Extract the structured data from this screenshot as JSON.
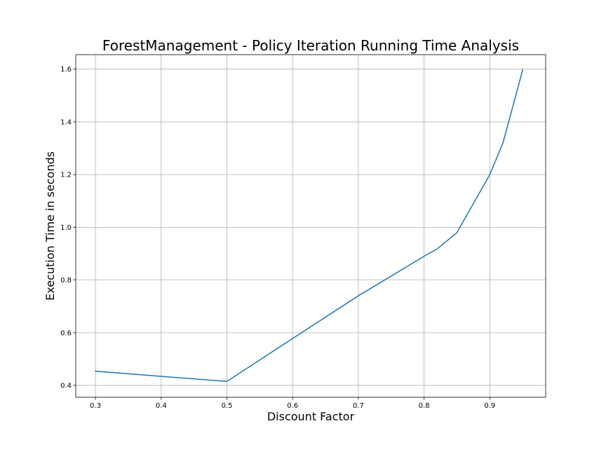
{
  "chart_data": {
    "type": "line",
    "title": "ForestManagement - Policy Iteration Running Time Analysis",
    "xlabel": "Discount Factor",
    "ylabel": "Execution Time in seconds",
    "xlim": [
      0.27,
      0.985
    ],
    "ylim": [
      0.355,
      1.655
    ],
    "x_ticks": [
      0.3,
      0.4,
      0.5,
      0.6,
      0.7,
      0.8,
      0.9
    ],
    "x_tick_labels": [
      "0.3",
      "0.4",
      "0.5",
      "0.6",
      "0.7",
      "0.8",
      "0.9"
    ],
    "y_ticks": [
      0.4,
      0.6,
      0.8,
      1.0,
      1.2,
      1.4,
      1.6
    ],
    "y_tick_labels": [
      "0.4",
      "0.6",
      "0.8",
      "1.0",
      "1.2",
      "1.4",
      "1.6"
    ],
    "grid": true,
    "series": [
      {
        "color": "#1f77b4",
        "x": [
          0.3,
          0.5,
          0.6,
          0.7,
          0.8,
          0.82,
          0.85,
          0.9,
          0.92,
          0.95
        ],
        "y": [
          0.454,
          0.415,
          0.578,
          0.74,
          0.89,
          0.918,
          0.98,
          1.2,
          1.32,
          1.597
        ]
      }
    ]
  }
}
